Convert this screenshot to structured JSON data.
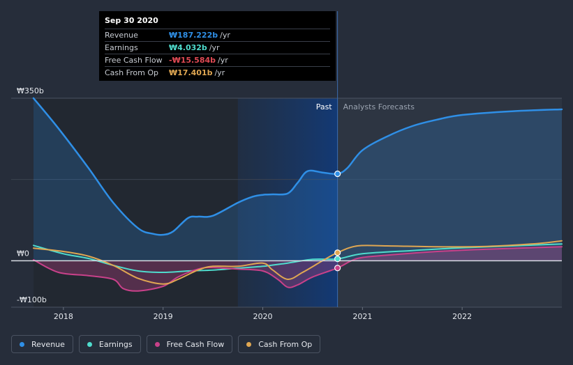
{
  "chart_data": {
    "type": "line",
    "currency_symbol": "₩",
    "y_axis": {
      "ylim": [
        -100,
        350
      ],
      "tick_labels": [
        "₩350b",
        "₩0",
        "-₩100b"
      ],
      "tick_values": [
        350,
        0,
        -100
      ]
    },
    "x_axis": {
      "xlim": [
        2017.7,
        2023.0
      ],
      "tick_labels": [
        "2018",
        "2019",
        "2020",
        "2021",
        "2022"
      ],
      "tick_values": [
        2018,
        2019,
        2020,
        2021,
        2022
      ]
    },
    "past_label": "Past",
    "forecast_label": "Analysts Forecasts",
    "divider_x": 2020.75,
    "highlight_range": [
      2019.75,
      2020.75
    ],
    "series": [
      {
        "name": "Revenue",
        "color": "#2f8fe6",
        "fill": true,
        "points": [
          [
            2017.7,
            350
          ],
          [
            2017.95,
            285
          ],
          [
            2018.25,
            200
          ],
          [
            2018.5,
            125
          ],
          [
            2018.75,
            70
          ],
          [
            2018.9,
            58
          ],
          [
            2019.0,
            56
          ],
          [
            2019.1,
            63
          ],
          [
            2019.25,
            92
          ],
          [
            2019.35,
            95
          ],
          [
            2019.5,
            97
          ],
          [
            2019.75,
            125
          ],
          [
            2019.9,
            138
          ],
          [
            2020.0,
            142
          ],
          [
            2020.1,
            143
          ],
          [
            2020.25,
            145
          ],
          [
            2020.35,
            168
          ],
          [
            2020.45,
            193
          ],
          [
            2020.6,
            190
          ],
          [
            2020.75,
            187.2
          ],
          [
            2020.85,
            200
          ],
          [
            2021.0,
            238
          ],
          [
            2021.25,
            268
          ],
          [
            2021.5,
            290
          ],
          [
            2021.75,
            304
          ],
          [
            2022.0,
            314
          ],
          [
            2022.5,
            322
          ],
          [
            2023.0,
            326
          ]
        ]
      },
      {
        "name": "Earnings",
        "color": "#4fdccd",
        "fill": false,
        "points": [
          [
            2017.7,
            33
          ],
          [
            2018.0,
            15
          ],
          [
            2018.25,
            5
          ],
          [
            2018.5,
            -10
          ],
          [
            2018.75,
            -22
          ],
          [
            2019.0,
            -25
          ],
          [
            2019.25,
            -22
          ],
          [
            2019.5,
            -20
          ],
          [
            2019.75,
            -16
          ],
          [
            2020.0,
            -12
          ],
          [
            2020.25,
            -5
          ],
          [
            2020.5,
            3
          ],
          [
            2020.75,
            4.0
          ],
          [
            2021.0,
            15
          ],
          [
            2021.5,
            22
          ],
          [
            2022.0,
            28
          ],
          [
            2022.5,
            32
          ],
          [
            2023.0,
            36
          ]
        ]
      },
      {
        "name": "Free Cash Flow",
        "color": "#c9418a",
        "fill": true,
        "points": [
          [
            2017.7,
            2
          ],
          [
            2017.95,
            -25
          ],
          [
            2018.25,
            -32
          ],
          [
            2018.5,
            -40
          ],
          [
            2018.6,
            -60
          ],
          [
            2018.75,
            -65
          ],
          [
            2019.0,
            -55
          ],
          [
            2019.15,
            -35
          ],
          [
            2019.35,
            -18
          ],
          [
            2019.5,
            -15
          ],
          [
            2019.75,
            -18
          ],
          [
            2020.0,
            -22
          ],
          [
            2020.15,
            -40
          ],
          [
            2020.25,
            -57
          ],
          [
            2020.35,
            -52
          ],
          [
            2020.5,
            -35
          ],
          [
            2020.75,
            -15.6
          ],
          [
            2020.95,
            5
          ],
          [
            2021.25,
            12
          ],
          [
            2021.75,
            20
          ],
          [
            2022.25,
            25
          ],
          [
            2023.0,
            30
          ]
        ]
      },
      {
        "name": "Cash From Op",
        "color": "#e0a752",
        "fill": false,
        "points": [
          [
            2017.7,
            27
          ],
          [
            2018.0,
            20
          ],
          [
            2018.25,
            10
          ],
          [
            2018.5,
            -10
          ],
          [
            2018.75,
            -38
          ],
          [
            2019.0,
            -50
          ],
          [
            2019.15,
            -40
          ],
          [
            2019.35,
            -20
          ],
          [
            2019.5,
            -12
          ],
          [
            2019.75,
            -12
          ],
          [
            2020.0,
            -5
          ],
          [
            2020.1,
            -20
          ],
          [
            2020.25,
            -40
          ],
          [
            2020.4,
            -25
          ],
          [
            2020.6,
            0
          ],
          [
            2020.75,
            17.4
          ],
          [
            2020.95,
            32
          ],
          [
            2021.25,
            32
          ],
          [
            2021.75,
            30
          ],
          [
            2022.25,
            31
          ],
          [
            2022.75,
            37
          ],
          [
            2023.0,
            43
          ]
        ]
      }
    ]
  },
  "tooltip": {
    "date": "Sep 30 2020",
    "unit": "/yr",
    "rows": [
      {
        "label": "Revenue",
        "value": "₩187.222b",
        "color": "#2f8fe6"
      },
      {
        "label": "Earnings",
        "value": "₩4.032b",
        "color": "#4fdccd"
      },
      {
        "label": "Free Cash Flow",
        "value": "-₩15.584b",
        "color": "#e04a54"
      },
      {
        "label": "Cash From Op",
        "value": "₩17.401b",
        "color": "#e0a752"
      }
    ]
  },
  "legend": [
    {
      "label": "Revenue",
      "color": "#2f8fe6"
    },
    {
      "label": "Earnings",
      "color": "#4fdccd"
    },
    {
      "label": "Free Cash Flow",
      "color": "#c9418a"
    },
    {
      "label": "Cash From Op",
      "color": "#e0a752"
    }
  ]
}
